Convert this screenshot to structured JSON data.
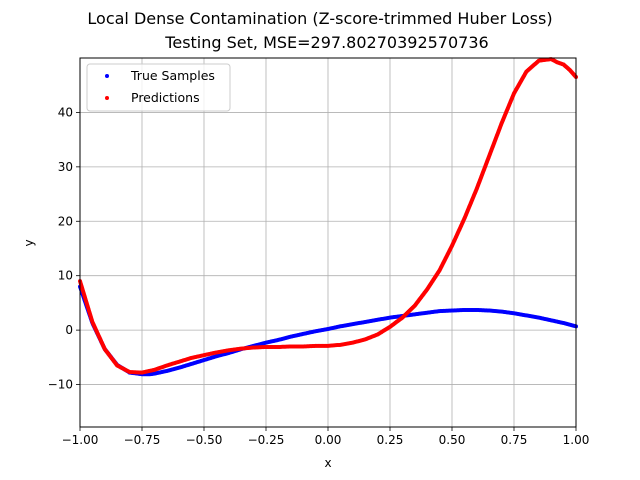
{
  "chart_data": {
    "type": "scatter",
    "title": "Local Dense Contamination (Z-score-trimmed Huber Loss)",
    "subtitle": "Testing Set, MSE=297.80270392570736",
    "xlabel": "x",
    "ylabel": "y",
    "xlim": [
      -1.0,
      1.0
    ],
    "ylim": [
      -17.8,
      50.0
    ],
    "x_ticks": [
      -1.0,
      -0.75,
      -0.5,
      -0.25,
      0.0,
      0.25,
      0.5,
      0.75,
      1.0
    ],
    "x_tick_labels": [
      "−1.00",
      "−0.75",
      "−0.50",
      "−0.25",
      "0.00",
      "0.25",
      "0.50",
      "0.75",
      "1.00"
    ],
    "y_ticks": [
      -10,
      0,
      10,
      20,
      30,
      40
    ],
    "y_tick_labels": [
      "−10",
      "0",
      "10",
      "20",
      "30",
      "40"
    ],
    "grid": true,
    "legend_position": "top-left",
    "series": [
      {
        "name": "True Samples",
        "color": "#0000ff",
        "x": [
          -1.0,
          -0.95,
          -0.9,
          -0.85,
          -0.8,
          -0.75,
          -0.72,
          -0.7,
          -0.65,
          -0.6,
          -0.55,
          -0.5,
          -0.45,
          -0.4,
          -0.35,
          -0.3,
          -0.25,
          -0.2,
          -0.15,
          -0.1,
          -0.05,
          0.0,
          0.05,
          0.1,
          0.15,
          0.2,
          0.25,
          0.3,
          0.35,
          0.4,
          0.45,
          0.5,
          0.55,
          0.6,
          0.65,
          0.7,
          0.75,
          0.8,
          0.85,
          0.9,
          0.95,
          1.0
        ],
        "y": [
          8.0,
          1.3,
          -3.5,
          -6.4,
          -7.8,
          -8.1,
          -8.1,
          -8.0,
          -7.5,
          -6.9,
          -6.2,
          -5.5,
          -4.8,
          -4.2,
          -3.5,
          -2.9,
          -2.3,
          -1.8,
          -1.2,
          -0.7,
          -0.2,
          0.2,
          0.7,
          1.1,
          1.5,
          1.9,
          2.3,
          2.6,
          2.9,
          3.2,
          3.5,
          3.6,
          3.7,
          3.7,
          3.6,
          3.4,
          3.1,
          2.7,
          2.3,
          1.8,
          1.3,
          0.7
        ]
      },
      {
        "name": "Predictions",
        "color": "#ff0000",
        "x": [
          -1.0,
          -0.95,
          -0.9,
          -0.85,
          -0.8,
          -0.75,
          -0.7,
          -0.65,
          -0.6,
          -0.55,
          -0.5,
          -0.45,
          -0.4,
          -0.35,
          -0.3,
          -0.25,
          -0.2,
          -0.15,
          -0.1,
          -0.05,
          0.0,
          0.05,
          0.1,
          0.15,
          0.2,
          0.25,
          0.3,
          0.35,
          0.4,
          0.45,
          0.5,
          0.55,
          0.6,
          0.65,
          0.7,
          0.75,
          0.8,
          0.85,
          0.9,
          0.925,
          0.95,
          0.975,
          1.0
        ],
        "y": [
          9.0,
          1.5,
          -3.5,
          -6.5,
          -7.7,
          -7.8,
          -7.3,
          -6.5,
          -5.8,
          -5.1,
          -4.6,
          -4.1,
          -3.7,
          -3.4,
          -3.2,
          -3.1,
          -3.1,
          -3.0,
          -3.0,
          -2.9,
          -2.9,
          -2.7,
          -2.3,
          -1.7,
          -0.8,
          0.6,
          2.3,
          4.5,
          7.5,
          11.0,
          15.5,
          20.5,
          26.0,
          32.0,
          38.0,
          43.5,
          47.5,
          49.5,
          49.8,
          49.2,
          48.8,
          47.8,
          46.5
        ]
      }
    ]
  }
}
